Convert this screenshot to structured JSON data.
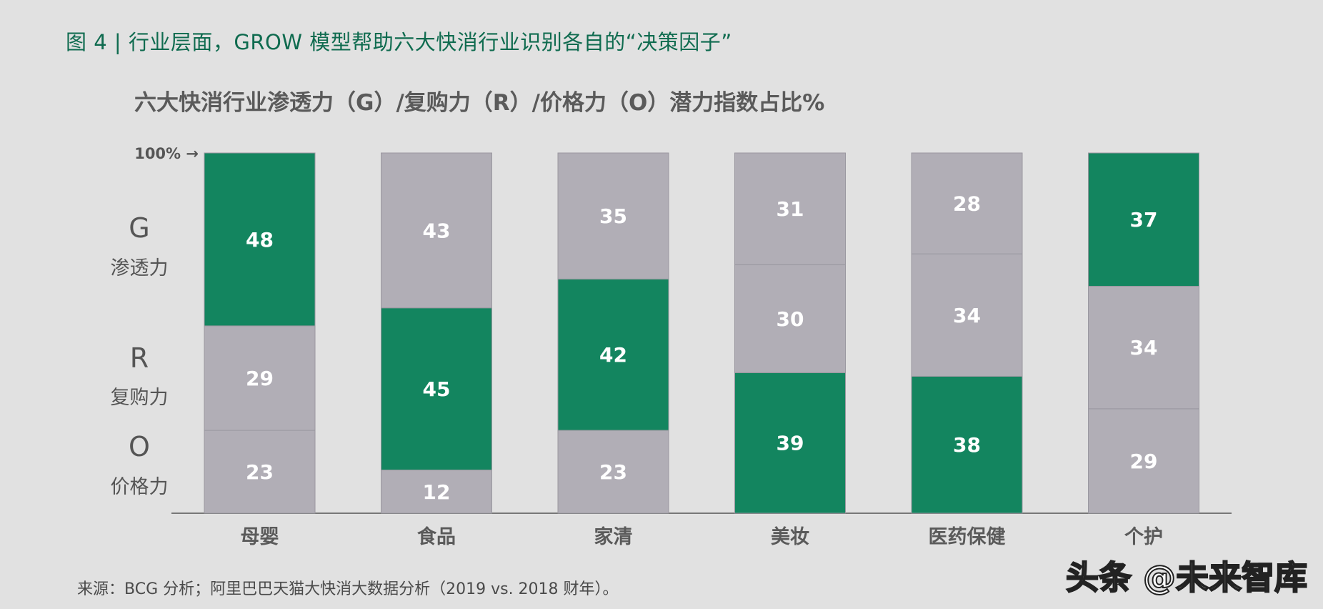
{
  "figure_title": "图 4 |   行业层面，GROW 模型帮助六大快消行业识别各自的“决策因子”",
  "source_note": "来源：BCG 分析；阿里巴巴天猫大快消大数据分析（2019 vs. 2018 财年）。",
  "watermark": "头条 @未来智库",
  "colors": {
    "background": "#e1e1e1",
    "highlight": "#13855f",
    "default": "#b1aeb6",
    "figure_title": "#0f6b4f"
  },
  "chart_data": {
    "type": "bar",
    "stacked": true,
    "title": "六大快消行业渗透力（G）/复购力（R）/价格力（O）潜力指数占比%",
    "categories": [
      "母婴",
      "食品",
      "家清",
      "美妆",
      "医药保健",
      "个护"
    ],
    "series": [
      {
        "name": "O",
        "label": "价格力",
        "values": [
          23,
          12,
          23,
          39,
          38,
          29
        ]
      },
      {
        "name": "R",
        "label": "复购力",
        "values": [
          29,
          45,
          42,
          30,
          34,
          34
        ]
      },
      {
        "name": "G",
        "label": "渗透力",
        "values": [
          48,
          43,
          35,
          31,
          28,
          37
        ]
      }
    ],
    "highlighted_series": [
      "G",
      "R",
      "R",
      "O",
      "O",
      "G"
    ],
    "ylim": [
      0,
      100
    ],
    "top_marker_label": "100% →"
  }
}
